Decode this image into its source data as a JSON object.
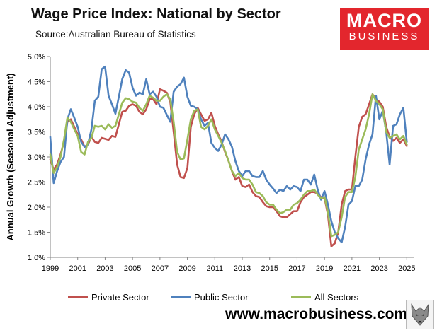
{
  "header": {
    "title": "Wage Price Index: National by Sector",
    "source": "Source:Australian Bureau of Statistics"
  },
  "logo": {
    "line1": "MACRO",
    "line2": "BUSINESS",
    "color": "#e3262d"
  },
  "footer": {
    "url": "www.macrobusiness.com.au"
  },
  "mascot_icon": "wolf-icon",
  "chart_data": {
    "type": "line",
    "ylabel": "Annual Growth (Seasonal Adjustment)",
    "xlabel": "",
    "xlim": [
      1999,
      2025.5
    ],
    "ylim": [
      1.0,
      5.0
    ],
    "x_ticks": [
      1999,
      2001,
      2003,
      2005,
      2007,
      2009,
      2011,
      2013,
      2015,
      2017,
      2019,
      2021,
      2023,
      2025
    ],
    "x_tick_labels": [
      "1999",
      "2001",
      "2003",
      "2005",
      "2007",
      "2009",
      "2011",
      "2013",
      "2015",
      "2017",
      "2019",
      "2021",
      "2023",
      "2025"
    ],
    "y_ticks": [
      1.0,
      1.5,
      2.0,
      2.5,
      3.0,
      3.5,
      4.0,
      4.5,
      5.0
    ],
    "y_tick_labels": [
      "1.0%",
      "1.5%",
      "2.0%",
      "2.5%",
      "3.0%",
      "3.5%",
      "4.0%",
      "4.5%",
      "5.0%"
    ],
    "grid": false,
    "legend_position": "bottom",
    "x_step": 0.25,
    "series": [
      {
        "name": "Private Sector",
        "color": "#c0504d",
        "x_start": 1999.0,
        "values": [
          2.95,
          2.75,
          2.85,
          3.05,
          3.3,
          3.7,
          3.75,
          3.6,
          3.45,
          3.35,
          3.2,
          3.25,
          3.4,
          3.3,
          3.28,
          3.38,
          3.36,
          3.34,
          3.42,
          3.4,
          3.65,
          3.9,
          3.92,
          4.02,
          4.05,
          4.02,
          3.9,
          3.85,
          3.95,
          4.15,
          4.15,
          4.05,
          4.35,
          4.32,
          4.28,
          4.1,
          3.5,
          2.85,
          2.6,
          2.58,
          2.78,
          3.6,
          3.85,
          3.98,
          3.85,
          3.72,
          3.75,
          3.88,
          3.62,
          3.45,
          3.3,
          3.1,
          2.92,
          2.72,
          2.55,
          2.6,
          2.42,
          2.4,
          2.45,
          2.3,
          2.22,
          2.2,
          2.1,
          2.02,
          2.0,
          2.0,
          1.92,
          1.82,
          1.8,
          1.8,
          1.86,
          1.92,
          1.92,
          2.1,
          2.2,
          2.25,
          2.3,
          2.3,
          2.27,
          2.2,
          2.18,
          1.85,
          1.22,
          1.28,
          1.5,
          2.05,
          2.32,
          2.35,
          2.35,
          3.0,
          3.6,
          3.8,
          3.85,
          4.05,
          4.25,
          4.15,
          4.1,
          4.0,
          3.6,
          3.4,
          3.32,
          3.38,
          3.28,
          3.35,
          3.22
        ]
      },
      {
        "name": "Public Sector",
        "color": "#4f81bd",
        "x_start": 1999.0,
        "values": [
          3.4,
          2.48,
          2.72,
          2.9,
          3.0,
          3.75,
          3.95,
          3.78,
          3.6,
          3.3,
          3.2,
          3.25,
          3.55,
          4.12,
          4.2,
          4.75,
          4.8,
          4.22,
          4.05,
          3.86,
          4.2,
          4.55,
          4.73,
          4.68,
          4.38,
          4.22,
          4.28,
          4.25,
          4.55,
          4.25,
          4.3,
          4.2,
          4.0,
          3.98,
          3.84,
          3.7,
          4.3,
          4.4,
          4.45,
          4.58,
          4.2,
          4.02,
          4.0,
          3.95,
          3.75,
          3.62,
          3.68,
          3.28,
          3.18,
          3.12,
          3.25,
          3.45,
          3.35,
          3.2,
          2.92,
          2.72,
          2.62,
          2.72,
          2.72,
          2.62,
          2.6,
          2.6,
          2.72,
          2.55,
          2.45,
          2.37,
          2.28,
          2.35,
          2.32,
          2.42,
          2.35,
          2.42,
          2.4,
          2.32,
          2.55,
          2.55,
          2.45,
          2.65,
          2.35,
          2.15,
          2.32,
          2.05,
          1.72,
          1.5,
          1.38,
          1.3,
          1.6,
          2.05,
          2.12,
          2.42,
          2.42,
          2.55,
          2.95,
          3.25,
          3.45,
          4.22,
          3.75,
          3.92,
          3.5,
          2.85,
          3.62,
          3.65,
          3.85,
          3.98,
          3.3
        ]
      },
      {
        "name": "All Sectors",
        "color": "#9bbb59",
        "x_start": 1999.0,
        "values": [
          3.05,
          2.68,
          2.8,
          3.0,
          3.35,
          3.78,
          3.7,
          3.55,
          3.42,
          3.1,
          3.05,
          3.3,
          3.38,
          3.62,
          3.6,
          3.62,
          3.55,
          3.65,
          3.58,
          3.62,
          3.85,
          4.08,
          4.17,
          4.15,
          4.1,
          4.08,
          3.98,
          3.92,
          4.05,
          4.22,
          4.18,
          4.12,
          4.12,
          4.2,
          4.25,
          4.15,
          3.7,
          3.1,
          2.95,
          2.97,
          3.35,
          3.75,
          3.92,
          3.95,
          3.6,
          3.55,
          3.62,
          3.75,
          3.55,
          3.42,
          3.28,
          3.12,
          2.92,
          2.72,
          2.62,
          2.68,
          2.58,
          2.55,
          2.55,
          2.45,
          2.3,
          2.28,
          2.22,
          2.1,
          2.05,
          2.05,
          1.95,
          1.88,
          1.9,
          1.95,
          1.95,
          2.05,
          2.08,
          2.15,
          2.25,
          2.32,
          2.32,
          2.35,
          2.25,
          2.18,
          2.2,
          1.9,
          1.42,
          1.45,
          1.5,
          1.8,
          2.2,
          2.3,
          2.3,
          2.6,
          3.15,
          3.35,
          3.55,
          3.85,
          4.25,
          4.12,
          4.05,
          3.95,
          3.5,
          3.38,
          3.42,
          3.45,
          3.35,
          3.42,
          3.25
        ]
      }
    ]
  }
}
